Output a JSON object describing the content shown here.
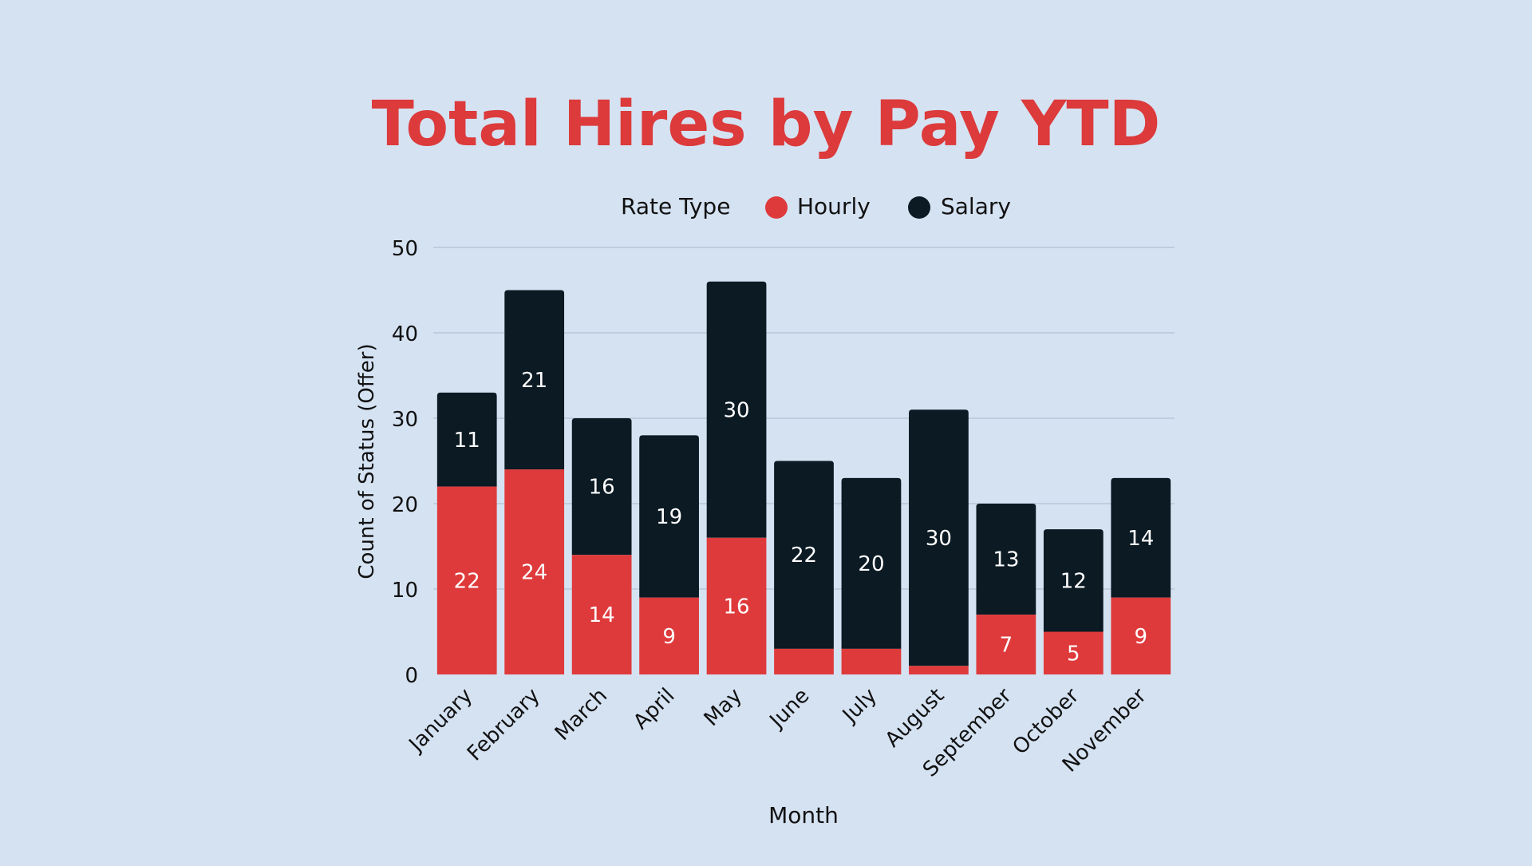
{
  "colors": {
    "background": "#d5e2f2",
    "title": "#dc3a3b",
    "hourly": "#df3a3b",
    "salary": "#0b1a23",
    "grid": "#aab8cb",
    "text": "#111111",
    "bar_label": "#ffffff"
  },
  "chart_data": {
    "type": "bar",
    "stacked": true,
    "title": "Total Hires by Pay YTD",
    "xlabel": "Month",
    "ylabel": "Count of Status (Offer)",
    "ylim": [
      0,
      50
    ],
    "yticks": [
      0,
      10,
      20,
      30,
      40,
      50
    ],
    "grid": true,
    "legend": {
      "position": "top",
      "title": "Rate Type",
      "entries": [
        "Hourly",
        "Salary"
      ]
    },
    "categories": [
      "January",
      "February",
      "March",
      "April",
      "May",
      "June",
      "July",
      "August",
      "September",
      "October",
      "November"
    ],
    "series": [
      {
        "name": "Hourly",
        "values": [
          22,
          24,
          14,
          9,
          16,
          3,
          3,
          1,
          7,
          5,
          9
        ],
        "labels": [
          "22",
          "24",
          "14",
          "9",
          "16",
          "",
          "",
          "",
          "7",
          "5",
          "9"
        ]
      },
      {
        "name": "Salary",
        "values": [
          11,
          21,
          16,
          19,
          30,
          22,
          20,
          30,
          13,
          12,
          14
        ],
        "labels": [
          "11",
          "21",
          "16",
          "19",
          "30",
          "22",
          "20",
          "30",
          "13",
          "12",
          "14"
        ]
      }
    ]
  }
}
